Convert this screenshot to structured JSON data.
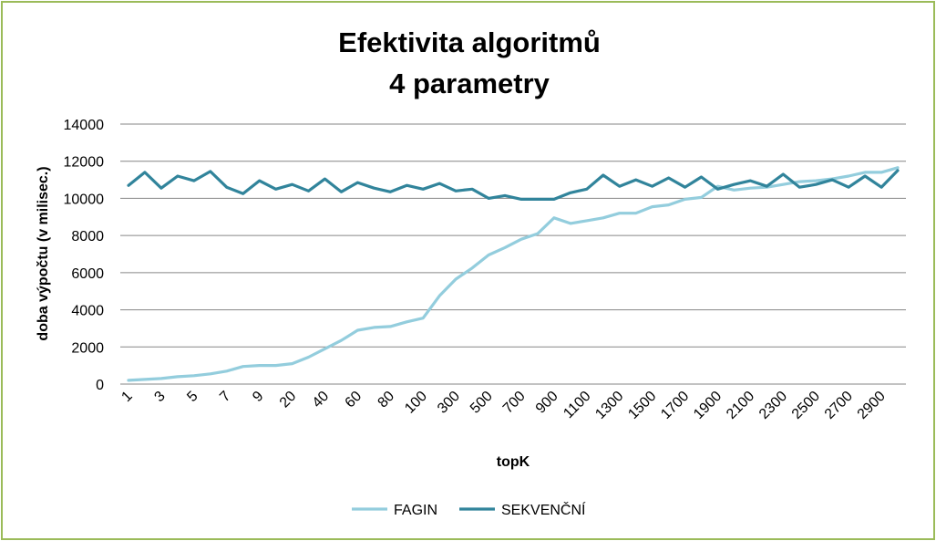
{
  "chart_data": {
    "type": "line",
    "title": [
      "Efektivita algoritmů",
      "4 parametry"
    ],
    "xlabel": "topK",
    "ylabel": "doba výpočtu (v milisec.)",
    "ylim": [
      0,
      14000
    ],
    "yticks": [
      0,
      2000,
      4000,
      6000,
      8000,
      10000,
      12000,
      14000
    ],
    "grid": true,
    "legend": "bottom",
    "x": [
      "1",
      "2",
      "3",
      "4",
      "5",
      "6",
      "7",
      "8",
      "9",
      "10",
      "20",
      "30",
      "40",
      "50",
      "60",
      "70",
      "80",
      "90",
      "100",
      "200",
      "300",
      "400",
      "500",
      "600",
      "700",
      "800",
      "900",
      "1000",
      "1100",
      "1200",
      "1300",
      "1400",
      "1500",
      "1600",
      "1700",
      "1800",
      "1900",
      "2000",
      "2100",
      "2200",
      "2300",
      "2400",
      "2500",
      "2600",
      "2700",
      "2800",
      "2900",
      "3000"
    ],
    "x_tick_labels_shown": [
      "1",
      "3",
      "5",
      "7",
      "9",
      "20",
      "40",
      "60",
      "80",
      "100",
      "300",
      "500",
      "700",
      "900",
      "1100",
      "1300",
      "1500",
      "1700",
      "1900",
      "2100",
      "2300",
      "2500",
      "2700",
      "2900"
    ],
    "series": [
      {
        "name": "FAGIN",
        "color": "#93cddd",
        "values": [
          200,
          250,
          300,
          400,
          450,
          550,
          700,
          950,
          1000,
          1000,
          1100,
          1450,
          1900,
          2350,
          2900,
          3050,
          3100,
          3350,
          3550,
          4750,
          5650,
          6250,
          6950,
          7350,
          7800,
          8100,
          8950,
          8650,
          8800,
          8950,
          9200,
          9200,
          9550,
          9650,
          9950,
          10050,
          10650,
          10450,
          10550,
          10600,
          10750,
          10900,
          10950,
          11050,
          11200,
          11400,
          11400,
          11650
        ]
      },
      {
        "name": "SEKVENČNÍ",
        "color": "#31849b",
        "values": [
          10700,
          11400,
          10550,
          11200,
          10950,
          11450,
          10600,
          10250,
          10950,
          10500,
          10750,
          10400,
          11050,
          10350,
          10850,
          10550,
          10350,
          10700,
          10500,
          10800,
          10400,
          10500,
          10000,
          10150,
          9950,
          9950,
          9950,
          10300,
          10500,
          11250,
          10650,
          11000,
          10650,
          11100,
          10600,
          11150,
          10500,
          10750,
          10950,
          10650,
          11300,
          10600,
          10750,
          11000,
          10600,
          11200,
          10600,
          11500
        ]
      }
    ]
  }
}
